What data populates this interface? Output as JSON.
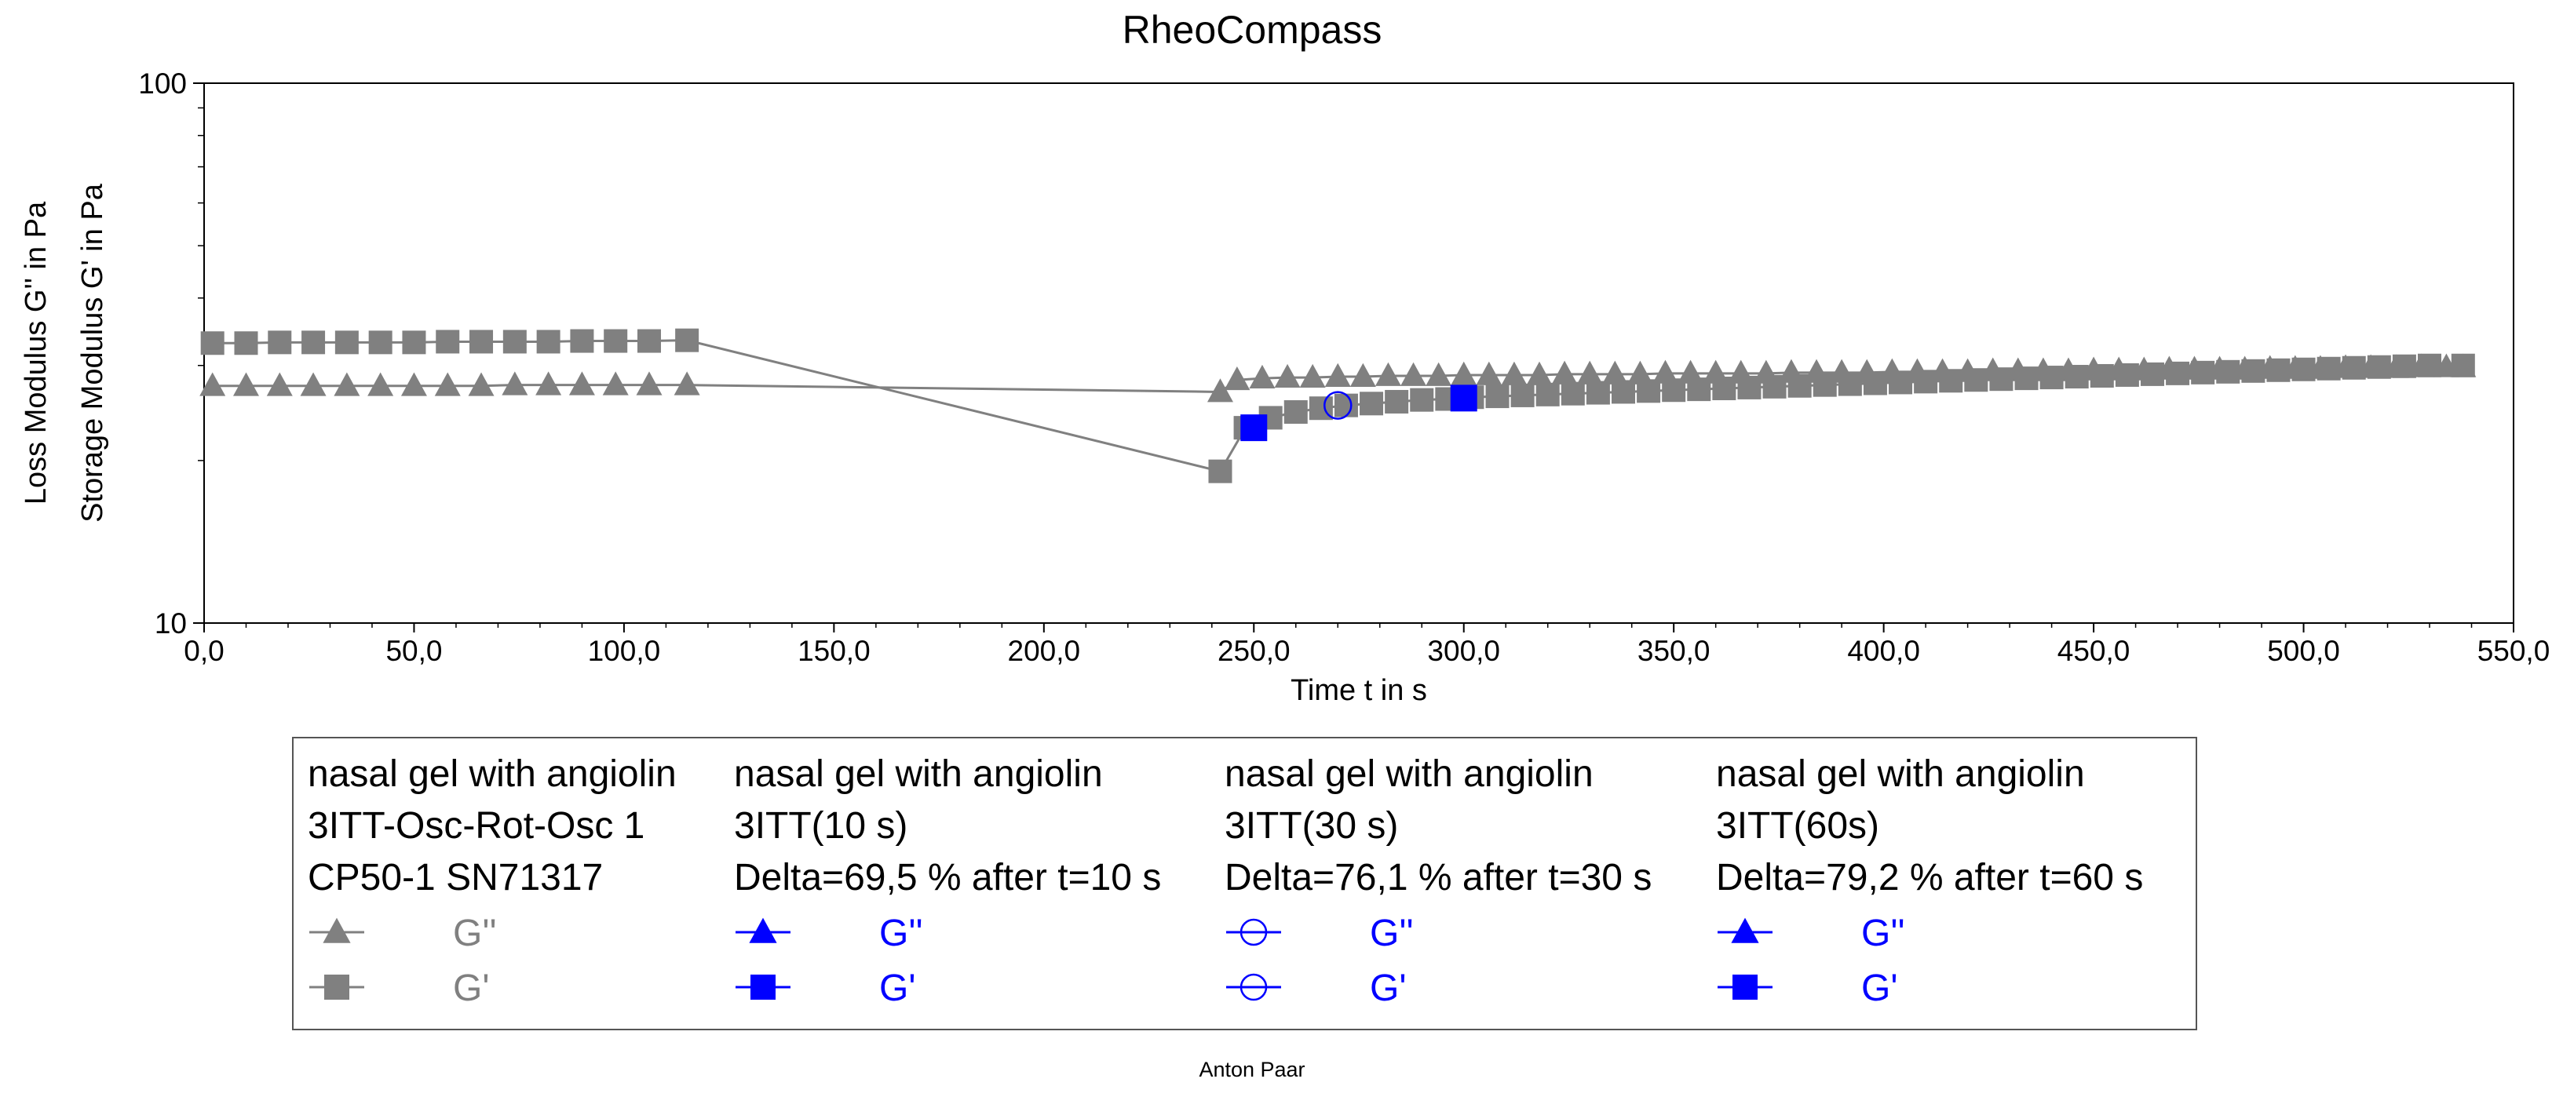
{
  "chart_data": {
    "type": "scatter",
    "title": "RheoCompass",
    "xlabel": "Time t in s",
    "ylabel_loss": "Loss Modulus G'' in Pa",
    "ylabel_storage": "Storage Modulus G' in Pa",
    "y_scale": "log",
    "xlim": [
      0,
      550
    ],
    "ylim": [
      10,
      100
    ],
    "x_ticks": [
      "0,0",
      "50,0",
      "100,0",
      "150,0",
      "200,0",
      "250,0",
      "300,0",
      "350,0",
      "400,0",
      "450,0",
      "500,0",
      "550,0"
    ],
    "y_ticks": [
      "10",
      "100"
    ],
    "footer": "Anton Paar",
    "legend_groups": [
      {
        "lines": [
          "nasal gel with angiolin",
          "3ITT-Osc-Rot-Osc 1",
          "CP50-1 SN71317"
        ],
        "color": "#808080",
        "entries": [
          {
            "label": "G''",
            "marker": "triangle"
          },
          {
            "label": "G'",
            "marker": "square"
          }
        ]
      },
      {
        "lines": [
          "nasal gel with angiolin",
          "3ITT(10 s)",
          "Delta=69,5 % after t=10 s"
        ],
        "color": "#0000ff",
        "entries": [
          {
            "label": "G''",
            "marker": "triangle"
          },
          {
            "label": "G'",
            "marker": "square"
          }
        ]
      },
      {
        "lines": [
          "nasal gel with angiolin",
          "3ITT(30 s)",
          "Delta=76,1 % after t=30 s"
        ],
        "color": "#0000ff",
        "entries": [
          {
            "label": "G''",
            "marker": "circle-open"
          },
          {
            "label": "G'",
            "marker": "circle-open"
          }
        ]
      },
      {
        "lines": [
          "nasal gel with angiolin",
          "3ITT(60s)",
          "Delta=79,2 % after t=60 s"
        ],
        "color": "#0000ff",
        "entries": [
          {
            "label": "G''",
            "marker": "triangle"
          },
          {
            "label": "G'",
            "marker": "square"
          }
        ]
      }
    ],
    "series": [
      {
        "name": "G'' phase 1",
        "marker": "triangle",
        "color": "#808080",
        "x": [
          2,
          10,
          18,
          26,
          34,
          42,
          50,
          58,
          66,
          74,
          82,
          90,
          98,
          106,
          115
        ],
        "y": [
          27.5,
          27.5,
          27.5,
          27.5,
          27.5,
          27.5,
          27.5,
          27.5,
          27.5,
          27.6,
          27.6,
          27.6,
          27.6,
          27.6,
          27.6
        ]
      },
      {
        "name": "G' phase 1",
        "marker": "square",
        "color": "#808080",
        "x": [
          2,
          10,
          18,
          26,
          34,
          42,
          50,
          58,
          66,
          74,
          82,
          90,
          98,
          106,
          115
        ],
        "y": [
          33.0,
          33.0,
          33.1,
          33.1,
          33.1,
          33.1,
          33.1,
          33.2,
          33.2,
          33.2,
          33.2,
          33.3,
          33.3,
          33.3,
          33.4
        ]
      },
      {
        "name": "G'' phase 3",
        "marker": "triangle",
        "color": "#808080",
        "x": [
          242,
          246,
          252,
          258,
          264,
          270,
          276,
          282,
          288,
          294,
          300,
          306,
          312,
          318,
          324,
          330,
          336,
          342,
          348,
          354,
          360,
          366,
          372,
          378,
          384,
          390,
          396,
          402,
          408,
          414,
          420,
          426,
          432,
          438,
          444,
          450,
          456,
          462,
          468,
          474,
          480,
          486,
          492,
          498,
          504,
          510,
          516,
          522,
          528,
          534,
          538
        ],
        "y": [
          26.8,
          28.2,
          28.4,
          28.5,
          28.5,
          28.6,
          28.6,
          28.7,
          28.7,
          28.7,
          28.8,
          28.8,
          28.8,
          28.8,
          28.9,
          28.9,
          28.9,
          28.9,
          29.0,
          29.0,
          29.0,
          29.0,
          29.0,
          29.1,
          29.1,
          29.1,
          29.1,
          29.2,
          29.2,
          29.2,
          29.2,
          29.3,
          29.3,
          29.3,
          29.3,
          29.4,
          29.4,
          29.4,
          29.5,
          29.5,
          29.5,
          29.5,
          29.6,
          29.6,
          29.6,
          29.7,
          29.7,
          29.7,
          29.8,
          29.8,
          29.8
        ]
      },
      {
        "name": "G' phase 3",
        "marker": "square",
        "color": "#808080",
        "x": [
          242,
          248,
          254,
          260,
          266,
          272,
          278,
          284,
          290,
          296,
          302,
          308,
          314,
          320,
          326,
          332,
          338,
          344,
          350,
          356,
          362,
          368,
          374,
          380,
          386,
          392,
          398,
          404,
          410,
          416,
          422,
          428,
          434,
          440,
          446,
          452,
          458,
          464,
          470,
          476,
          482,
          488,
          494,
          500,
          506,
          512,
          518,
          524,
          530,
          538
        ],
        "y": [
          19.1,
          23.0,
          24.0,
          24.6,
          25.0,
          25.3,
          25.5,
          25.7,
          25.9,
          26.0,
          26.2,
          26.3,
          26.4,
          26.5,
          26.6,
          26.7,
          26.8,
          26.9,
          27.0,
          27.1,
          27.2,
          27.3,
          27.4,
          27.5,
          27.6,
          27.7,
          27.8,
          27.9,
          28.0,
          28.1,
          28.2,
          28.3,
          28.4,
          28.5,
          28.6,
          28.7,
          28.8,
          28.9,
          29.0,
          29.1,
          29.2,
          29.3,
          29.4,
          29.5,
          29.6,
          29.7,
          29.8,
          29.9,
          30.0,
          30.0
        ]
      },
      {
        "name": "3ITT(10 s) G'",
        "marker": "square",
        "color": "#0000ff",
        "x": [
          250
        ],
        "y": [
          23.0
        ]
      },
      {
        "name": "3ITT(30 s) G'",
        "marker": "circle-open",
        "color": "#0000ff",
        "x": [
          270
        ],
        "y": [
          25.3
        ]
      },
      {
        "name": "3ITT(60s) G'",
        "marker": "square",
        "color": "#0000ff",
        "x": [
          300
        ],
        "y": [
          26.1
        ]
      }
    ]
  }
}
